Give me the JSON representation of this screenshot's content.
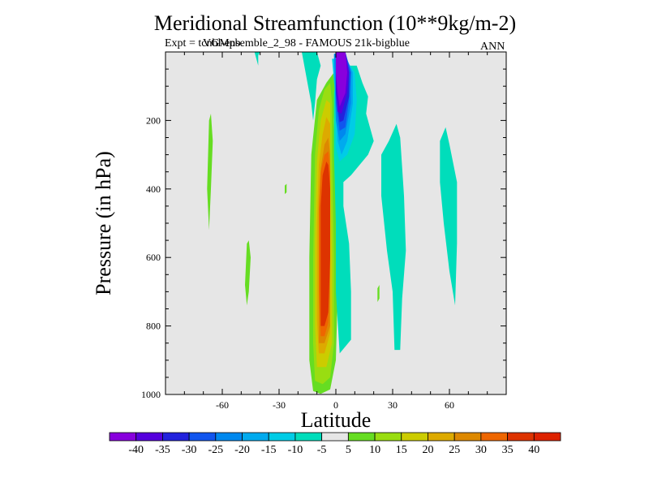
{
  "chart_data": {
    "type": "filled-contour",
    "title": "Meridional Streamfunction (10**9kg/m-2)",
    "subtitle": "Expt = tcnbl-ensemble_2_98 - FAMOUS 21k-bigblue",
    "subtitle_overlay": "VGMpb",
    "season": "ANN",
    "xlabel": "Latitude",
    "ylabel": "Pressure (in hPa)",
    "xlim": [
      -90,
      90
    ],
    "ylim": [
      0,
      1000
    ],
    "x_ticks": [
      -60,
      -30,
      0,
      30,
      60
    ],
    "y_ticks": [
      200,
      400,
      600,
      800,
      1000
    ],
    "background_color": "#e6e6e6",
    "colorbar": {
      "labels": [
        "-40",
        "-35",
        "-30",
        "-25",
        "-20",
        "-15",
        "-10",
        "-5",
        "5",
        "10",
        "15",
        "20",
        "25",
        "30",
        "35",
        "40"
      ],
      "colors": [
        "#8800dd",
        "#5500dd",
        "#2222dd",
        "#1155ee",
        "#0088ee",
        "#00aaee",
        "#00cce6",
        "#00ddbb",
        "#e6e6e6",
        "#66dd22",
        "#99dd11",
        "#cccc00",
        "#ddaa00",
        "#dd8800",
        "#ee6600",
        "#dd3300",
        "#dd2200"
      ]
    },
    "regions": [
      {
        "name": "positive-cell-outer",
        "level": "5 to 10",
        "color": "#66dd22",
        "points": [
          [
            -12,
            990
          ],
          [
            -14,
            900
          ],
          [
            -14,
            600
          ],
          [
            -13,
            300
          ],
          [
            -10,
            140
          ],
          [
            -5,
            90
          ],
          [
            -1,
            60
          ],
          [
            0,
            100
          ],
          [
            -1,
            200
          ],
          [
            0,
            400
          ],
          [
            1,
            700
          ],
          [
            0,
            900
          ],
          [
            -3,
            985
          ],
          [
            -8,
            998
          ]
        ]
      },
      {
        "name": "positive-cell-10",
        "level": "10 to 15",
        "color": "#99dd11",
        "points": [
          [
            -11,
            960
          ],
          [
            -12,
            850
          ],
          [
            -12,
            600
          ],
          [
            -11,
            300
          ],
          [
            -9,
            170
          ],
          [
            -6,
            110
          ],
          [
            -3,
            90
          ],
          [
            -2,
            150
          ],
          [
            -2,
            300
          ],
          [
            -1,
            600
          ],
          [
            -1,
            850
          ],
          [
            -3,
            950
          ],
          [
            -7,
            970
          ]
        ]
      },
      {
        "name": "positive-cell-15",
        "level": "15 to 20",
        "color": "#cccc00",
        "points": [
          [
            -10,
            920
          ],
          [
            -11,
            800
          ],
          [
            -11,
            550
          ],
          [
            -10,
            320
          ],
          [
            -8,
            200
          ],
          [
            -5,
            140
          ],
          [
            -3,
            150
          ],
          [
            -3,
            300
          ],
          [
            -2,
            600
          ],
          [
            -2,
            850
          ],
          [
            -5,
            920
          ]
        ]
      },
      {
        "name": "positive-cell-20",
        "level": "20 to 25",
        "color": "#ddaa00",
        "points": [
          [
            -9,
            880
          ],
          [
            -10,
            780
          ],
          [
            -10,
            500
          ],
          [
            -9,
            330
          ],
          [
            -7,
            240
          ],
          [
            -5,
            190
          ],
          [
            -3,
            210
          ],
          [
            -3,
            350
          ],
          [
            -3,
            600
          ],
          [
            -3,
            820
          ],
          [
            -6,
            880
          ]
        ]
      },
      {
        "name": "positive-cell-25",
        "level": "25 to 30",
        "color": "#dd8800",
        "points": [
          [
            -9,
            850
          ],
          [
            -9,
            750
          ],
          [
            -9,
            480
          ],
          [
            -8,
            340
          ],
          [
            -6,
            270
          ],
          [
            -4,
            250
          ],
          [
            -3,
            300
          ],
          [
            -3,
            600
          ],
          [
            -3,
            800
          ],
          [
            -6,
            850
          ]
        ]
      },
      {
        "name": "positive-cell-30",
        "level": "30 to 35",
        "color": "#ee6600",
        "points": [
          [
            -8,
            830
          ],
          [
            -9,
            700
          ],
          [
            -9,
            460
          ],
          [
            -8,
            350
          ],
          [
            -6,
            300
          ],
          [
            -4,
            290
          ],
          [
            -3,
            350
          ],
          [
            -3,
            600
          ],
          [
            -4,
            790
          ],
          [
            -6,
            830
          ]
        ]
      },
      {
        "name": "positive-cell-core",
        "level": "35 to 40",
        "color": "#dd3300",
        "points": [
          [
            -8,
            800
          ],
          [
            -8,
            700
          ],
          [
            -8,
            450
          ],
          [
            -7,
            360
          ],
          [
            -5,
            320
          ],
          [
            -4,
            330
          ],
          [
            -3,
            400
          ],
          [
            -3,
            600
          ],
          [
            -4,
            760
          ],
          [
            -6,
            800
          ]
        ]
      },
      {
        "name": "cyan-north-of-cell",
        "level": "-10 to -5",
        "color": "#00ddbb",
        "points": [
          [
            1,
            40
          ],
          [
            11,
            40
          ],
          [
            14,
            90
          ],
          [
            17,
            130
          ],
          [
            16,
            180
          ],
          [
            20,
            260
          ],
          [
            17,
            300
          ],
          [
            8,
            360
          ],
          [
            4,
            380
          ],
          [
            4,
            450
          ],
          [
            7,
            560
          ],
          [
            8,
            700
          ],
          [
            8,
            840
          ],
          [
            2,
            880
          ],
          [
            0,
            700
          ],
          [
            0,
            500
          ],
          [
            -1,
            300
          ],
          [
            -1,
            120
          ]
        ]
      },
      {
        "name": "cyan-upper-left-tongue",
        "level": "-10 to -5",
        "color": "#00ddbb",
        "points": [
          [
            -18,
            0
          ],
          [
            -10,
            0
          ],
          [
            -8,
            40
          ],
          [
            -10,
            80
          ],
          [
            -11,
            150
          ],
          [
            -12,
            200
          ],
          [
            -13,
            150
          ],
          [
            -15,
            90
          ]
        ]
      },
      {
        "name": "cyan-top-small-left",
        "level": "-10 to -5",
        "color": "#00ddbb",
        "points": [
          [
            -43,
            0
          ],
          [
            -40,
            0
          ],
          [
            -41,
            10
          ],
          [
            -41,
            40
          ]
        ]
      },
      {
        "name": "cyan-east-patch-1",
        "level": "-10 to -5",
        "color": "#00ddbb",
        "points": [
          [
            24,
            300
          ],
          [
            28,
            260
          ],
          [
            32,
            210
          ],
          [
            34,
            250
          ],
          [
            36,
            420
          ],
          [
            37,
            580
          ],
          [
            35,
            720
          ],
          [
            34,
            870
          ],
          [
            31,
            870
          ],
          [
            30,
            700
          ],
          [
            27,
            580
          ],
          [
            24,
            420
          ]
        ]
      },
      {
        "name": "cyan-east-patch-2",
        "level": "-10 to -5",
        "color": "#00ddbb",
        "points": [
          [
            55,
            260
          ],
          [
            58,
            220
          ],
          [
            60,
            270
          ],
          [
            64,
            380
          ],
          [
            64,
            560
          ],
          [
            63,
            740
          ],
          [
            60,
            640
          ],
          [
            57,
            500
          ],
          [
            55,
            380
          ]
        ]
      },
      {
        "name": "purple-cell-outer",
        "level": "-15 to -10",
        "color": "#00cce6",
        "points": [
          [
            -2,
            20
          ],
          [
            5,
            20
          ],
          [
            10,
            60
          ],
          [
            11,
            140
          ],
          [
            10,
            240
          ],
          [
            6,
            300
          ],
          [
            2,
            320
          ],
          [
            0,
            280
          ],
          [
            0,
            150
          ]
        ]
      },
      {
        "name": "purple-cell-15",
        "level": "-20 to -15",
        "color": "#00aaee",
        "points": [
          [
            -1,
            10
          ],
          [
            5,
            10
          ],
          [
            9,
            60
          ],
          [
            9,
            150
          ],
          [
            6,
            260
          ],
          [
            3,
            300
          ],
          [
            1,
            260
          ],
          [
            0,
            160
          ]
        ]
      },
      {
        "name": "purple-cell-20",
        "level": "-25 to -20",
        "color": "#0088ee",
        "points": [
          [
            -1,
            5
          ],
          [
            5,
            5
          ],
          [
            8,
            60
          ],
          [
            8,
            150
          ],
          [
            5,
            240
          ],
          [
            2,
            260
          ],
          [
            0,
            200
          ]
        ]
      },
      {
        "name": "purple-cell-25",
        "level": "-30 to -25",
        "color": "#1155ee",
        "points": [
          [
            0,
            0
          ],
          [
            5,
            0
          ],
          [
            8,
            60
          ],
          [
            7,
            140
          ],
          [
            5,
            220
          ],
          [
            2,
            230
          ],
          [
            0,
            150
          ]
        ]
      },
      {
        "name": "purple-cell-30",
        "level": "-35 to -30",
        "color": "#2222dd",
        "points": [
          [
            0,
            0
          ],
          [
            5,
            0
          ],
          [
            7,
            60
          ],
          [
            7,
            130
          ],
          [
            4,
            200
          ],
          [
            2,
            205
          ],
          [
            0,
            120
          ]
        ]
      },
      {
        "name": "purple-cell-35",
        "level": "-40 to -35",
        "color": "#5500dd",
        "points": [
          [
            0,
            0
          ],
          [
            5,
            0
          ],
          [
            7,
            60
          ],
          [
            6,
            120
          ],
          [
            3,
            180
          ],
          [
            1,
            175
          ],
          [
            0,
            80
          ]
        ]
      },
      {
        "name": "purple-cell-core",
        "level": "< -40",
        "color": "#8800dd",
        "points": [
          [
            0,
            0
          ],
          [
            5,
            0
          ],
          [
            6,
            60
          ],
          [
            5,
            120
          ],
          [
            2,
            160
          ],
          [
            1,
            120
          ],
          [
            0,
            60
          ]
        ]
      },
      {
        "name": "green-sliver-west-1",
        "level": "5 to 10",
        "color": "#66dd22",
        "points": [
          [
            -67,
            200
          ],
          [
            -66,
            180
          ],
          [
            -65,
            260
          ],
          [
            -66,
            400
          ],
          [
            -67,
            520
          ],
          [
            -68,
            400
          ]
        ]
      },
      {
        "name": "green-sliver-west-2",
        "level": "5 to 10",
        "color": "#66dd22",
        "points": [
          [
            -47,
            560
          ],
          [
            -46,
            550
          ],
          [
            -45,
            600
          ],
          [
            -46,
            700
          ],
          [
            -47,
            740
          ],
          [
            -48,
            680
          ]
        ]
      },
      {
        "name": "green-dot-mid",
        "level": "5 to 10",
        "color": "#66dd22",
        "points": [
          [
            -27,
            390
          ],
          [
            -26,
            385
          ],
          [
            -26,
            410
          ],
          [
            -27,
            415
          ]
        ]
      },
      {
        "name": "green-dot-east",
        "level": "5 to 10",
        "color": "#66dd22",
        "points": [
          [
            22,
            690
          ],
          [
            23,
            680
          ],
          [
            23,
            720
          ],
          [
            22,
            730
          ]
        ]
      }
    ]
  }
}
